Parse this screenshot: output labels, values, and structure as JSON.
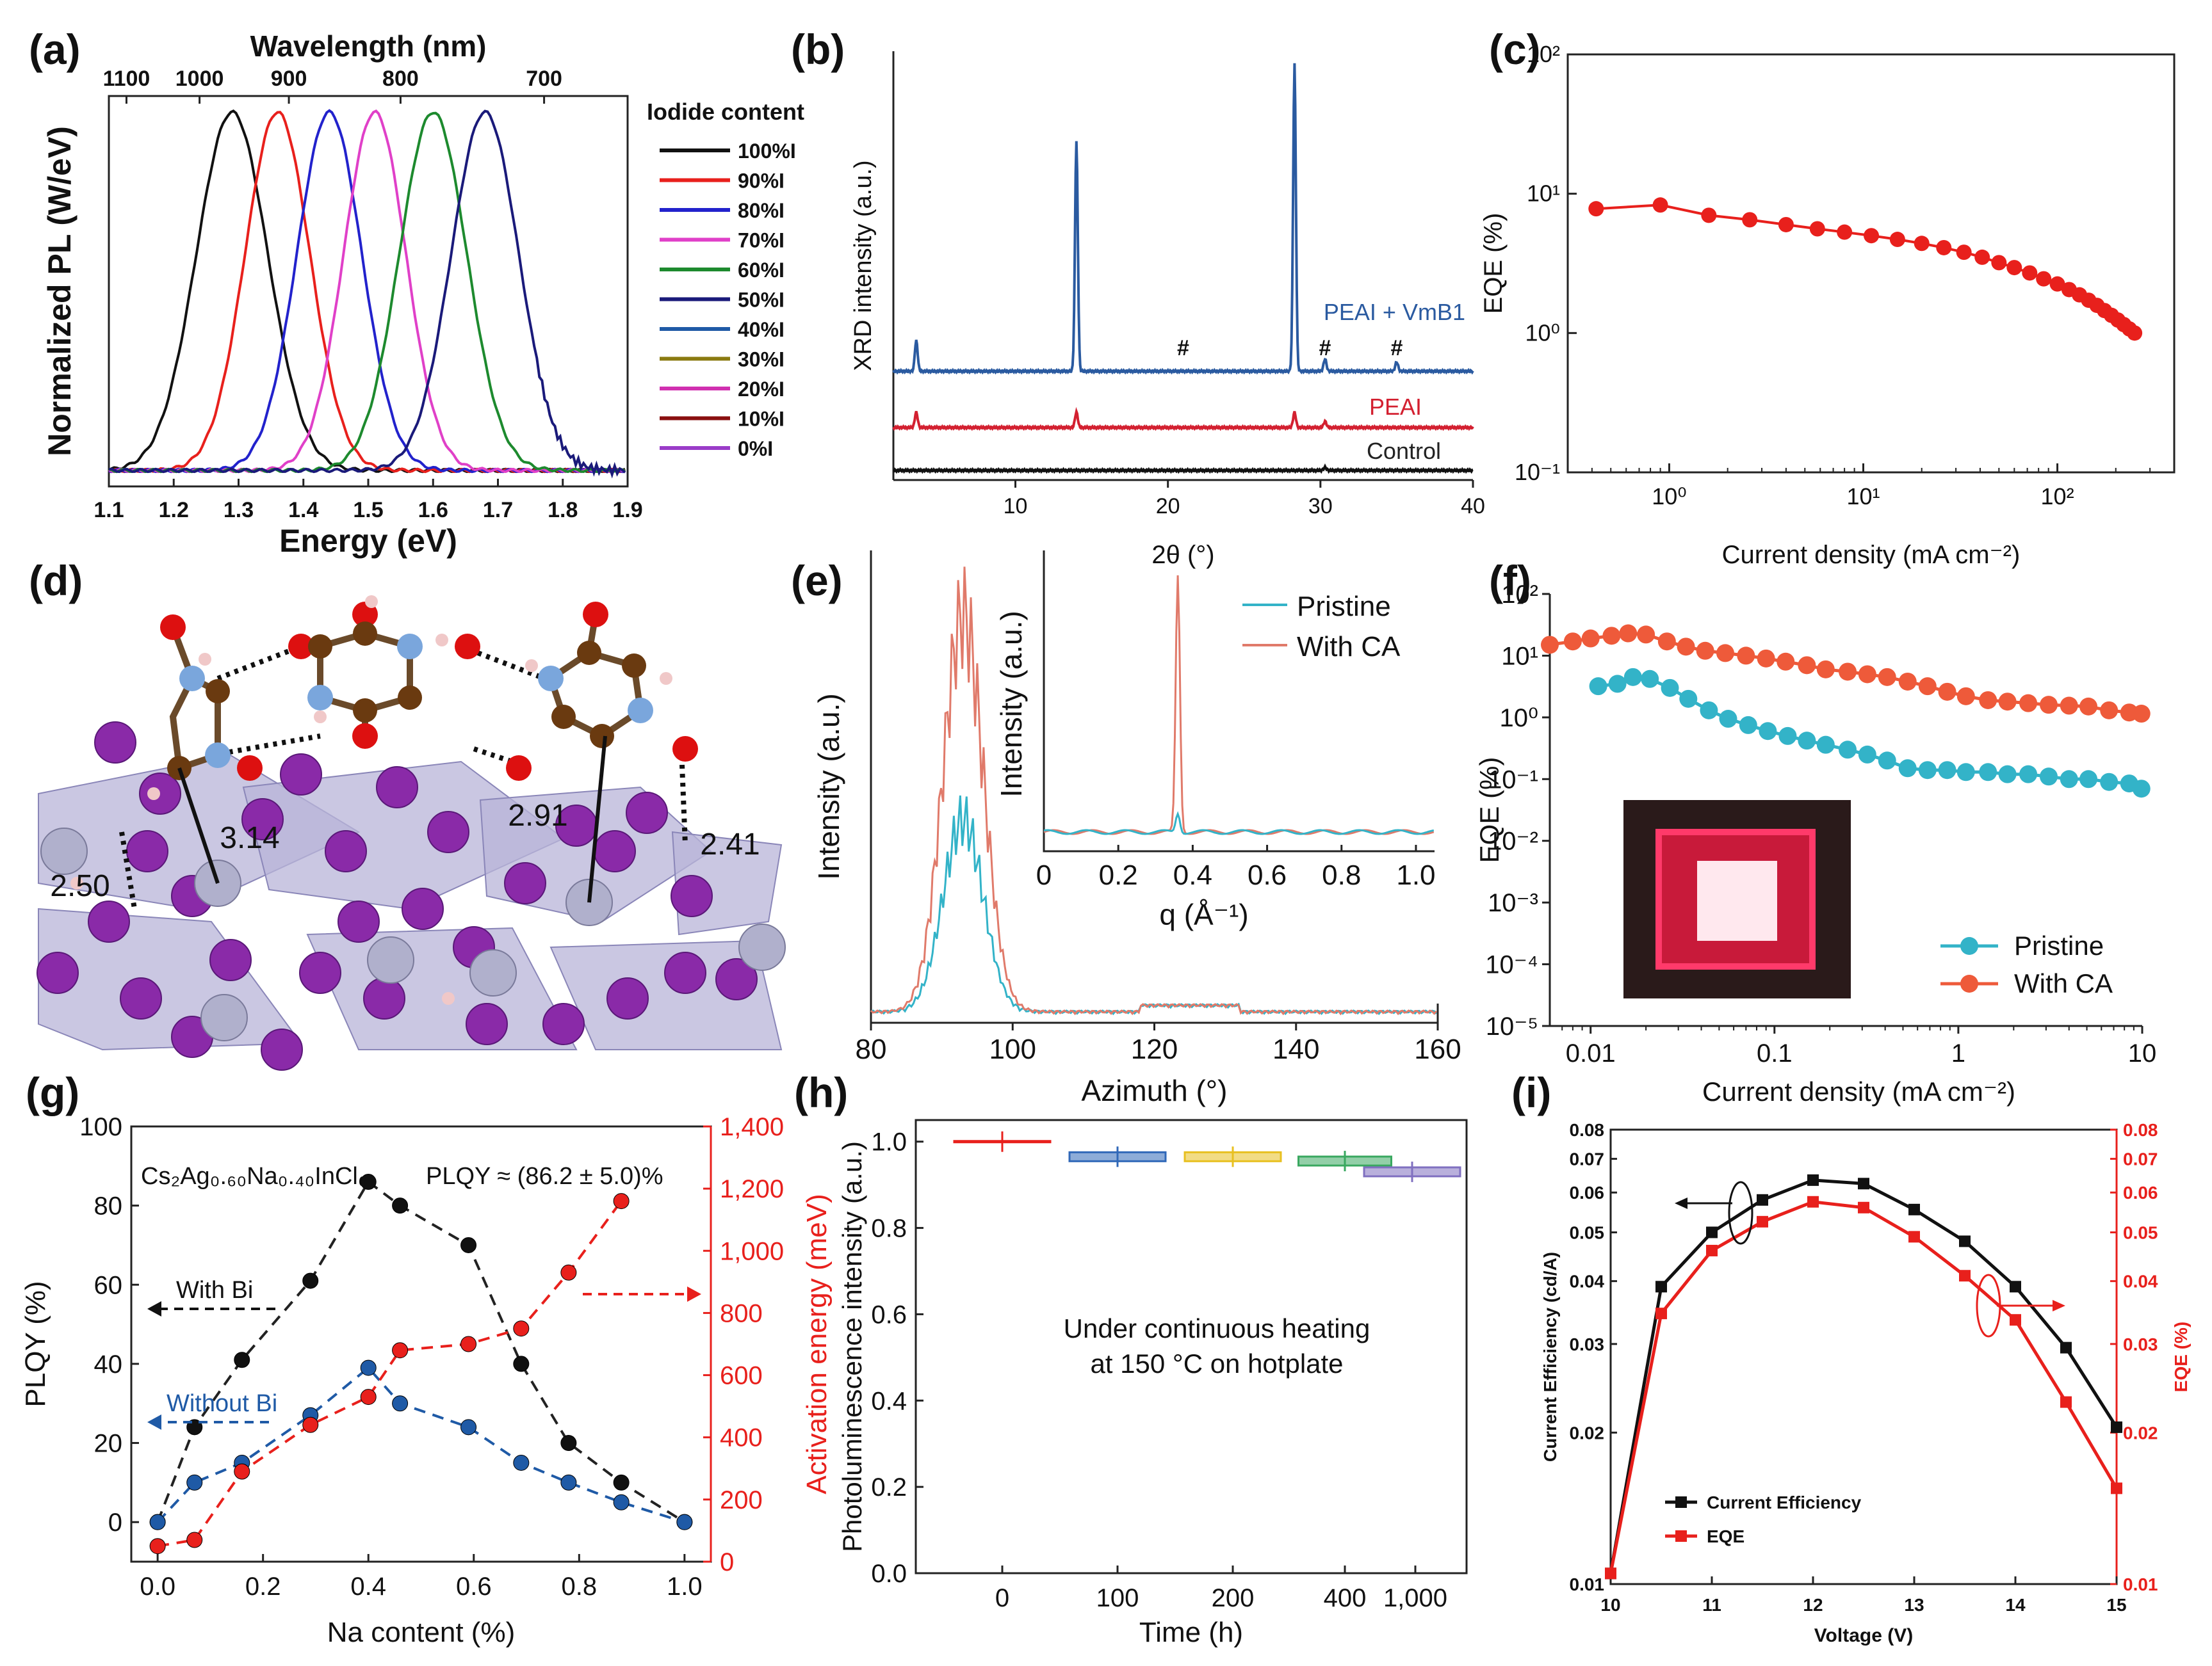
{
  "colors": {
    "black": "#111111",
    "red": "#e8201c",
    "blue": "#1f5aa6",
    "pink": "#e040c8",
    "green": "#1d8a2e",
    "navy": "#1a1a7a",
    "olive": "#8a7a10",
    "maroon": "#8a1010",
    "purple": "#9a3cc8",
    "teal": "#33b3c8",
    "orange": "#ee5a3a",
    "xrdBlue": "#2a5aa0",
    "xrdRed": "#d32030",
    "boxBlue": "#3068b8",
    "boxYellow": "#e8c020",
    "boxGreen": "#3aa860",
    "boxPurple": "#8070c0"
  },
  "panels": {
    "a": {
      "label": "(a)",
      "chart_data": {
        "type": "line",
        "title": "Wavelength (nm)",
        "xlabel": "Energy (eV)",
        "ylabel": "Normalized PL (W/eV)",
        "xlim": [
          1.1,
          1.9
        ],
        "xticks": [
          "1.1",
          "1.2",
          "1.3",
          "1.4",
          "1.5",
          "1.6",
          "1.7",
          "1.8",
          "1.9"
        ],
        "top_axis_ticks": [
          "1100",
          "1000",
          "900",
          "800",
          "700"
        ],
        "legend_title": "Iodide content",
        "legend": [
          "100%I",
          "90%I",
          "80%I",
          "70%I",
          "60%I",
          "50%I",
          "40%I",
          "30%I",
          "20%I",
          "10%I",
          "0%I"
        ],
        "legend_colors": [
          "#111111",
          "#e8201c",
          "#2222cc",
          "#e040c8",
          "#1d8a2e",
          "#1a1a7a",
          "#1f5aa6",
          "#8a7a10",
          "#d030b0",
          "#8a1010",
          "#9a3cc8"
        ],
        "series": [
          {
            "name": "100%I",
            "peak": 1.29,
            "width": 0.055
          },
          {
            "name": "90%I",
            "peak": 1.36,
            "width": 0.05
          },
          {
            "name": "80%I",
            "peak": 1.44,
            "width": 0.05
          },
          {
            "name": "70%I",
            "peak": 1.51,
            "width": 0.048
          },
          {
            "name": "60%I",
            "peak": 1.6,
            "width": 0.052
          },
          {
            "name": "50%I",
            "peak": 1.68,
            "width": 0.052
          }
        ]
      }
    },
    "b": {
      "label": "(b)",
      "chart_data": {
        "type": "line",
        "xlabel": "2θ (°)",
        "ylabel": "XRD intensity (a.u.)",
        "xlim": [
          2,
          40
        ],
        "xticks": [
          "10",
          "20",
          "30",
          "40"
        ],
        "series": [
          {
            "name": "PEAI + VmB1",
            "offset": 0.22,
            "peaks": [
              [
                3.5,
                0.1
              ],
              [
                14.0,
                0.75
              ],
              [
                28.3,
                1.0
              ],
              [
                30.3,
                0.04
              ],
              [
                35.0,
                0.03
              ]
            ]
          },
          {
            "name": "PEAI",
            "offset": 0.1,
            "peaks": [
              [
                3.5,
                0.05
              ],
              [
                14.0,
                0.05
              ],
              [
                28.3,
                0.05
              ],
              [
                30.3,
                0.02
              ]
            ]
          },
          {
            "name": "Control",
            "offset": 0.0,
            "peaks": [
              [
                30.3,
                0.01
              ]
            ]
          }
        ],
        "annotations": [
          "#",
          "#",
          "#"
        ]
      }
    },
    "c": {
      "label": "(c)",
      "chart_data": {
        "type": "line",
        "xlabel": "Current density (mA cm⁻²)",
        "ylabel": "EQE (%)",
        "xscale": "log",
        "yscale": "log",
        "xlim": [
          0.3,
          400
        ],
        "ylim": [
          0.1,
          100
        ],
        "xticks": [
          "10⁰",
          "10¹",
          "10²"
        ],
        "yticks": [
          "10⁻¹",
          "10⁰",
          "10¹",
          "10²"
        ],
        "x": [
          0.42,
          0.9,
          1.6,
          2.6,
          4.0,
          5.8,
          8,
          11,
          15,
          20,
          26,
          33,
          41,
          50,
          60,
          72,
          85,
          100,
          115,
          130,
          145,
          160,
          175,
          190,
          205,
          220,
          235,
          250
        ],
        "y": [
          7.8,
          8.3,
          7.0,
          6.5,
          6.0,
          5.6,
          5.3,
          5.0,
          4.7,
          4.4,
          4.1,
          3.8,
          3.5,
          3.2,
          2.95,
          2.7,
          2.45,
          2.25,
          2.05,
          1.88,
          1.72,
          1.58,
          1.45,
          1.34,
          1.24,
          1.15,
          1.07,
          1.0
        ]
      }
    },
    "d": {
      "label": "(d)",
      "distances": [
        "3.14",
        "2.91",
        "2.41",
        "2.50"
      ]
    },
    "e": {
      "label": "(e)",
      "chart_data": {
        "type": "line",
        "xlabel": "Azimuth (°)",
        "ylabel": "Intensity (a.u.)",
        "xlim": [
          80,
          160
        ],
        "xticks": [
          "80",
          "100",
          "120",
          "140",
          "160"
        ],
        "legend": [
          "Pristine",
          "With CA"
        ],
        "inset": {
          "xlabel": "q (Å⁻¹)",
          "ylabel": "Intensity (a.u.)",
          "xlim": [
            0,
            1.05
          ],
          "xticks": [
            "0",
            "0.2",
            "0.4",
            "0.6",
            "0.8",
            "1.0"
          ],
          "peak_q": 0.36
        }
      }
    },
    "f": {
      "label": "(f)",
      "chart_data": {
        "type": "line",
        "xlabel": "Current density (mA cm⁻²)",
        "ylabel": "EQE (%)",
        "xscale": "log",
        "yscale": "log",
        "xlim": [
          0.006,
          10
        ],
        "ylim": [
          1e-05,
          100
        ],
        "xticks": [
          "0.01",
          "0.1",
          "1",
          "10"
        ],
        "yticks": [
          "10⁻⁵",
          "10⁻⁴",
          "10⁻³",
          "10⁻²",
          "10⁻¹",
          "10⁰",
          "10¹",
          "10²"
        ],
        "legend": [
          "Pristine",
          "With CA"
        ],
        "series": [
          {
            "name": "With CA",
            "x": [
              0.006,
              0.008,
              0.01,
              0.013,
              0.016,
              0.02,
              0.026,
              0.033,
              0.042,
              0.054,
              0.07,
              0.09,
              0.115,
              0.15,
              0.19,
              0.25,
              0.32,
              0.41,
              0.53,
              0.68,
              0.87,
              1.1,
              1.45,
              1.85,
              2.4,
              3.1,
              4.0,
              5.1,
              6.6,
              8.5,
              9.9
            ],
            "y": [
              15,
              17,
              19,
              21,
              23,
              22,
              17,
              14,
              12,
              11,
              10,
              9,
              8,
              7,
              6,
              5.5,
              5,
              4.5,
              3.8,
              3.2,
              2.6,
              2.2,
              1.9,
              1.8,
              1.7,
              1.6,
              1.55,
              1.5,
              1.3,
              1.2,
              1.15
            ]
          },
          {
            "name": "Pristine",
            "x": [
              0.011,
              0.014,
              0.017,
              0.021,
              0.027,
              0.034,
              0.044,
              0.056,
              0.072,
              0.092,
              0.118,
              0.15,
              0.19,
              0.25,
              0.32,
              0.41,
              0.53,
              0.68,
              0.87,
              1.1,
              1.45,
              1.85,
              2.4,
              3.1,
              4.0,
              5.1,
              6.6,
              8.5,
              9.9
            ],
            "y": [
              3.2,
              3.5,
              4.5,
              4.2,
              3.0,
              2.0,
              1.3,
              0.95,
              0.75,
              0.6,
              0.5,
              0.42,
              0.36,
              0.3,
              0.25,
              0.2,
              0.15,
              0.14,
              0.14,
              0.13,
              0.13,
              0.12,
              0.12,
              0.11,
              0.1,
              0.1,
              0.09,
              0.085,
              0.07
            ]
          }
        ]
      }
    },
    "g": {
      "label": "(g)",
      "formula": "Cs₂Ag₀.₆₀Na₀.₄₀InCl₆",
      "plqy_note": "PLQY ≈ (86.2 ± 5.0)%",
      "with_bi": "With Bi",
      "without_bi": "Without  Bi",
      "chart_data": {
        "type": "scatter",
        "xlabel": "Na content (%)",
        "ylabel": "PLQY (%)",
        "ylabel_right": "Activation energy (meV)",
        "xlim": [
          -0.05,
          1.05
        ],
        "ylim": [
          -10,
          100
        ],
        "ylim_right": [
          0,
          1400
        ],
        "xticks": [
          "0.0",
          "0.2",
          "0.4",
          "0.6",
          "0.8",
          "1.0"
        ],
        "yticks": [
          "0",
          "20",
          "40",
          "60",
          "80",
          "100"
        ],
        "yticks_right": [
          "0",
          "200",
          "400",
          "600",
          "800",
          "1,000",
          "1,200",
          "1,400"
        ],
        "series": [
          {
            "name": "With Bi",
            "axis": "left",
            "x": [
              0.0,
              0.07,
              0.16,
              0.29,
              0.4,
              0.46,
              0.59,
              0.69,
              0.78,
              0.88,
              1.0
            ],
            "y": [
              0,
              24,
              41,
              61,
              86,
              80,
              70,
              40,
              20,
              10,
              0
            ]
          },
          {
            "name": "Without Bi",
            "axis": "left",
            "x": [
              0.0,
              0.07,
              0.16,
              0.29,
              0.4,
              0.46,
              0.59,
              0.69,
              0.78,
              0.88,
              1.0
            ],
            "y": [
              0,
              10,
              15,
              27,
              39,
              30,
              24,
              15,
              10,
              5,
              0
            ]
          },
          {
            "name": "Activation energy",
            "axis": "right",
            "x": [
              0.0,
              0.07,
              0.16,
              0.29,
              0.4,
              0.46,
              0.59,
              0.69,
              0.78,
              0.88
            ],
            "y": [
              50,
              70,
              290,
              440,
              530,
              680,
              700,
              750,
              930,
              1160
            ]
          }
        ]
      }
    },
    "h": {
      "label": "(h)",
      "annotation_line1": "Under continuous heating",
      "annotation_line2": "at 150 °C on hotplate",
      "chart_data": {
        "type": "bar",
        "xlabel": "Time (h)",
        "ylabel": "Photoluminescence intensity (a.u.)",
        "categories": [
          "0",
          "100",
          "200",
          "400",
          "1,000"
        ],
        "values": [
          1.0,
          0.965,
          0.965,
          0.955,
          0.93
        ],
        "ylim": [
          0.0,
          1.05
        ],
        "yticks": [
          "0.0",
          "0.2",
          "0.4",
          "0.6",
          "0.8",
          "1.0"
        ]
      }
    },
    "i": {
      "label": "(i)",
      "chart_data": {
        "type": "line",
        "xlabel": "Voltage (V)",
        "ylabel": "Current Efficiency (cd/A)",
        "ylabel_right": "EQE (%)",
        "xlim": [
          10,
          15
        ],
        "ylim": [
          0.01,
          0.08
        ],
        "yscale": "log",
        "xticks": [
          "10",
          "11",
          "12",
          "13",
          "14",
          "15"
        ],
        "yticks": [
          "0.01",
          "0.02",
          "0.03",
          "0.04",
          "0.05",
          "0.06",
          "0.07",
          "0.08"
        ],
        "legend": [
          "Current Efficiency",
          "EQE"
        ],
        "series": [
          {
            "name": "Current Efficiency",
            "x": [
              10.0,
              10.5,
              11.0,
              11.5,
              12.0,
              12.5,
              13.0,
              13.5,
              14.0,
              14.5,
              15.0
            ],
            "y": [
              0.0105,
              0.039,
              0.05,
              0.058,
              0.0635,
              0.0625,
              0.0555,
              0.048,
              0.039,
              0.0295,
              0.0205
            ]
          },
          {
            "name": "EQE",
            "x": [
              10.0,
              10.5,
              11.0,
              11.5,
              12.0,
              12.5,
              13.0,
              13.5,
              14.0,
              14.5,
              15.0
            ],
            "y": [
              0.0105,
              0.0345,
              0.046,
              0.0525,
              0.0575,
              0.056,
              0.049,
              0.041,
              0.0335,
              0.023,
              0.0155
            ]
          }
        ]
      }
    }
  }
}
